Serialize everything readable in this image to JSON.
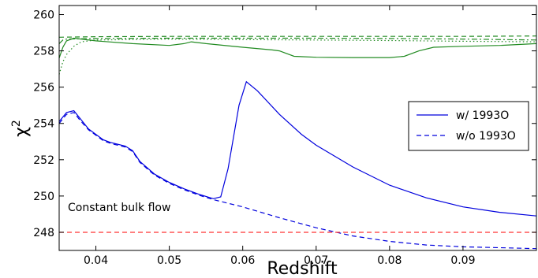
{
  "chart_data": {
    "type": "line",
    "title": "",
    "xlabel": "Redshift",
    "ylabel": "χ",
    "ylabel_superscript": "2",
    "xlim": [
      0.035,
      0.1
    ],
    "ylim": [
      247,
      260.5
    ],
    "xticks": [
      "0.04",
      "0.05",
      "0.06",
      "0.07",
      "0.08",
      "0.09"
    ],
    "yticks": [
      "248",
      "250",
      "252",
      "254",
      "256",
      "258",
      "260"
    ],
    "grid": false,
    "legend_position": "right",
    "legend": [
      {
        "label": "w/ 1993O",
        "style": "solid",
        "color": "#0000dd"
      },
      {
        "label": "w/o 1993O",
        "style": "dashed",
        "color": "#0000dd"
      }
    ],
    "annotation": "Constant bulk flow",
    "colors": {
      "blue": "#0000dd",
      "green": "#228b22",
      "red": "#ff3333"
    },
    "series": [
      {
        "name": "w/ 1993O",
        "color": "#0000dd",
        "style": "solid",
        "points": [
          [
            0.035,
            254.1
          ],
          [
            0.036,
            254.6
          ],
          [
            0.037,
            254.7
          ],
          [
            0.038,
            254.2
          ],
          [
            0.039,
            253.7
          ],
          [
            0.04,
            253.4
          ],
          [
            0.041,
            253.1
          ],
          [
            0.042,
            252.95
          ],
          [
            0.043,
            252.85
          ],
          [
            0.044,
            252.75
          ],
          [
            0.045,
            252.5
          ],
          [
            0.046,
            251.9
          ],
          [
            0.048,
            251.2
          ],
          [
            0.05,
            250.75
          ],
          [
            0.052,
            250.4
          ],
          [
            0.054,
            250.1
          ],
          [
            0.056,
            249.85
          ],
          [
            0.057,
            249.95
          ],
          [
            0.058,
            251.5
          ],
          [
            0.0595,
            255.0
          ],
          [
            0.0605,
            256.3
          ],
          [
            0.062,
            255.8
          ],
          [
            0.065,
            254.5
          ],
          [
            0.068,
            253.4
          ],
          [
            0.07,
            252.8
          ],
          [
            0.075,
            251.6
          ],
          [
            0.08,
            250.6
          ],
          [
            0.085,
            249.9
          ],
          [
            0.09,
            249.4
          ],
          [
            0.095,
            249.1
          ],
          [
            0.1,
            248.9
          ]
        ]
      },
      {
        "name": "w/o 1993O",
        "color": "#0000dd",
        "style": "dashed",
        "points": [
          [
            0.035,
            254.0
          ],
          [
            0.036,
            254.5
          ],
          [
            0.037,
            254.6
          ],
          [
            0.038,
            254.1
          ],
          [
            0.039,
            253.65
          ],
          [
            0.04,
            253.35
          ],
          [
            0.041,
            253.05
          ],
          [
            0.042,
            252.9
          ],
          [
            0.043,
            252.8
          ],
          [
            0.044,
            252.7
          ],
          [
            0.045,
            252.45
          ],
          [
            0.046,
            251.85
          ],
          [
            0.048,
            251.15
          ],
          [
            0.05,
            250.7
          ],
          [
            0.052,
            250.35
          ],
          [
            0.054,
            250.05
          ],
          [
            0.056,
            249.8
          ],
          [
            0.058,
            249.6
          ],
          [
            0.06,
            249.4
          ],
          [
            0.065,
            248.8
          ],
          [
            0.07,
            248.25
          ],
          [
            0.075,
            247.8
          ],
          [
            0.08,
            247.5
          ],
          [
            0.085,
            247.3
          ],
          [
            0.09,
            247.2
          ],
          [
            0.095,
            247.15
          ],
          [
            0.1,
            247.1
          ]
        ]
      },
      {
        "name": "",
        "color": "#228b22",
        "style": "solid",
        "points": [
          [
            0.035,
            257.6
          ],
          [
            0.0355,
            258.2
          ],
          [
            0.036,
            258.55
          ],
          [
            0.037,
            258.7
          ],
          [
            0.038,
            258.65
          ],
          [
            0.04,
            258.55
          ],
          [
            0.045,
            258.4
          ],
          [
            0.05,
            258.3
          ],
          [
            0.052,
            258.4
          ],
          [
            0.053,
            258.5
          ],
          [
            0.055,
            258.4
          ],
          [
            0.06,
            258.2
          ],
          [
            0.064,
            258.05
          ],
          [
            0.065,
            258.0
          ],
          [
            0.067,
            257.7
          ],
          [
            0.07,
            257.65
          ],
          [
            0.075,
            257.63
          ],
          [
            0.08,
            257.63
          ],
          [
            0.082,
            257.7
          ],
          [
            0.084,
            258.0
          ],
          [
            0.086,
            258.2
          ],
          [
            0.09,
            258.25
          ],
          [
            0.095,
            258.3
          ],
          [
            0.1,
            258.4
          ]
        ]
      },
      {
        "name": "",
        "color": "#228b22",
        "style": "dashed",
        "points": [
          [
            0.035,
            258.75
          ],
          [
            0.04,
            258.78
          ],
          [
            0.05,
            258.8
          ],
          [
            0.06,
            258.8
          ],
          [
            0.07,
            258.8
          ],
          [
            0.08,
            258.8
          ],
          [
            0.09,
            258.8
          ],
          [
            0.1,
            258.82
          ]
        ]
      },
      {
        "name": "",
        "color": "#228b22",
        "style": "dashdot",
        "points": [
          [
            0.035,
            258.4
          ],
          [
            0.0355,
            258.6
          ],
          [
            0.036,
            258.65
          ],
          [
            0.04,
            258.68
          ],
          [
            0.05,
            258.7
          ],
          [
            0.06,
            258.7
          ],
          [
            0.07,
            258.7
          ],
          [
            0.08,
            258.68
          ],
          [
            0.09,
            258.65
          ],
          [
            0.1,
            258.6
          ]
        ]
      },
      {
        "name": "",
        "color": "#228b22",
        "style": "dotted",
        "points": [
          [
            0.035,
            256.7
          ],
          [
            0.0355,
            257.4
          ],
          [
            0.036,
            257.8
          ],
          [
            0.037,
            258.25
          ],
          [
            0.038,
            258.5
          ],
          [
            0.04,
            258.6
          ],
          [
            0.05,
            258.65
          ],
          [
            0.06,
            258.62
          ],
          [
            0.07,
            258.6
          ],
          [
            0.08,
            258.57
          ],
          [
            0.09,
            258.53
          ],
          [
            0.1,
            258.5
          ]
        ]
      },
      {
        "name": "Constant bulk flow",
        "color": "#ff3333",
        "style": "dashed",
        "points": [
          [
            0.035,
            248.0
          ],
          [
            0.1,
            248.0
          ]
        ]
      }
    ]
  }
}
